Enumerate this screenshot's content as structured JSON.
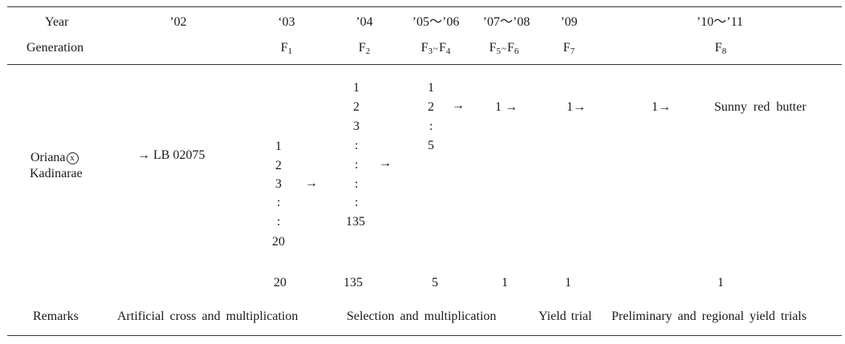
{
  "header": {
    "year_label": "Year",
    "generation_label": "Generation",
    "years": [
      "’02",
      "‘03",
      "’04",
      "’05～’06",
      "’07～’08",
      "’09",
      "’10～’11"
    ],
    "gen_f1": {
      "letter": "F",
      "sub": "1"
    },
    "gen_f2": {
      "letter": "F",
      "sub": "2"
    },
    "gen_f3f4": {
      "a_letter": "F",
      "a_sub": "3",
      "sep": "~",
      "b_letter": "F",
      "b_sub": "4"
    },
    "gen_f5f6": {
      "a_letter": "F",
      "a_sub": "5",
      "sep": "~",
      "b_letter": "F",
      "b_sub": "6"
    },
    "gen_f7": {
      "letter": "F",
      "sub": "7"
    },
    "gen_f8": {
      "letter": "F",
      "sub": "8"
    }
  },
  "cross": {
    "parent1": "Oriana",
    "cross_symbol": "x",
    "parent2": "Kadinarae",
    "line": "→ LB 02075"
  },
  "col_f1": {
    "entries": [
      "1",
      "2",
      "3",
      ":",
      ":",
      "20"
    ],
    "arrow": "→"
  },
  "col_f2": {
    "entries": [
      "1",
      "2",
      "3",
      ":",
      ":",
      ":",
      ":",
      "135"
    ],
    "arrow": "→"
  },
  "col_f3f4": {
    "entries": [
      "1",
      "2",
      ":",
      "5"
    ],
    "arrow": "→"
  },
  "col_f5f6": {
    "value": "1 →"
  },
  "col_f7": {
    "value": "1→"
  },
  "col_f8a": {
    "value": "1→"
  },
  "final_variety": "Sunny red butter",
  "totals": [
    "20",
    "135",
    "5",
    "1",
    "1",
    "1"
  ],
  "remarks": {
    "label": "Remarks",
    "cross": "Artificial cross and multiplication",
    "selection": "Selection and multiplication",
    "yield": "Yield trial",
    "regional": "Preliminary and regional yield trials"
  }
}
